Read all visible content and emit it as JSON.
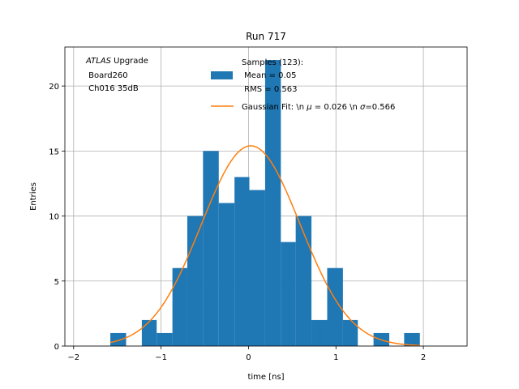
{
  "chart_data": {
    "type": "bar",
    "title": "Run 717",
    "xlabel": "time [ns]",
    "ylabel": "Entries",
    "xlim": [
      -2.1,
      2.5
    ],
    "ylim": [
      0,
      23
    ],
    "grid": true,
    "x_ticks": [
      -2,
      -1,
      0,
      1,
      2
    ],
    "x_tick_labels": [
      "−2",
      "−1",
      "0",
      "1",
      "2"
    ],
    "y_ticks": [
      0,
      5,
      10,
      15,
      20
    ],
    "y_tick_labels": [
      "0",
      "5",
      "10",
      "15",
      "20"
    ],
    "annotation": {
      "italic": "ATLAS",
      "line1_rest": " Upgrade",
      "line2": " Board260",
      "line3": " Ch016 35dB"
    },
    "histogram": {
      "name_lines": [
        "Samples (123):",
        " Mean = 0.05",
        " RMS = 0.563"
      ],
      "color": "#1f77b4",
      "bins": [
        {
          "x0": -1.58,
          "x1": -1.4,
          "count": 1
        },
        {
          "x0": -1.4,
          "x1": -1.22,
          "count": 0
        },
        {
          "x0": -1.22,
          "x1": -1.05,
          "count": 2
        },
        {
          "x0": -1.05,
          "x1": -0.87,
          "count": 1
        },
        {
          "x0": -0.87,
          "x1": -0.7,
          "count": 6
        },
        {
          "x0": -0.7,
          "x1": -0.52,
          "count": 10
        },
        {
          "x0": -0.52,
          "x1": -0.34,
          "count": 15
        },
        {
          "x0": -0.34,
          "x1": -0.16,
          "count": 11
        },
        {
          "x0": -0.16,
          "x1": 0.01,
          "count": 13
        },
        {
          "x0": 0.01,
          "x1": 0.19,
          "count": 12
        },
        {
          "x0": 0.19,
          "x1": 0.37,
          "count": 22
        },
        {
          "x0": 0.37,
          "x1": 0.54,
          "count": 8
        },
        {
          "x0": 0.54,
          "x1": 0.72,
          "count": 10
        },
        {
          "x0": 0.72,
          "x1": 0.9,
          "count": 2
        },
        {
          "x0": 0.9,
          "x1": 1.08,
          "count": 6
        },
        {
          "x0": 1.08,
          "x1": 1.25,
          "count": 2
        },
        {
          "x0": 1.25,
          "x1": 1.43,
          "count": 0
        },
        {
          "x0": 1.43,
          "x1": 1.61,
          "count": 1
        },
        {
          "x0": 1.61,
          "x1": 1.78,
          "count": 0
        },
        {
          "x0": 1.78,
          "x1": 1.96,
          "count": 1
        }
      ]
    },
    "fit": {
      "name": "Gaussian Fit: \\n μ = 0.026 \\n σ=0.566",
      "legend_prefix": "Gaussian Fit: \\n ",
      "mu_symbol": "μ",
      "legend_mid": " = 0.026 \\n ",
      "sigma_symbol": "σ",
      "legend_suffix": "=0.566",
      "color": "#ff7f0e",
      "amplitude": 15.4,
      "mu": 0.026,
      "sigma": 0.566,
      "x_range": [
        -1.58,
        1.96
      ]
    }
  }
}
